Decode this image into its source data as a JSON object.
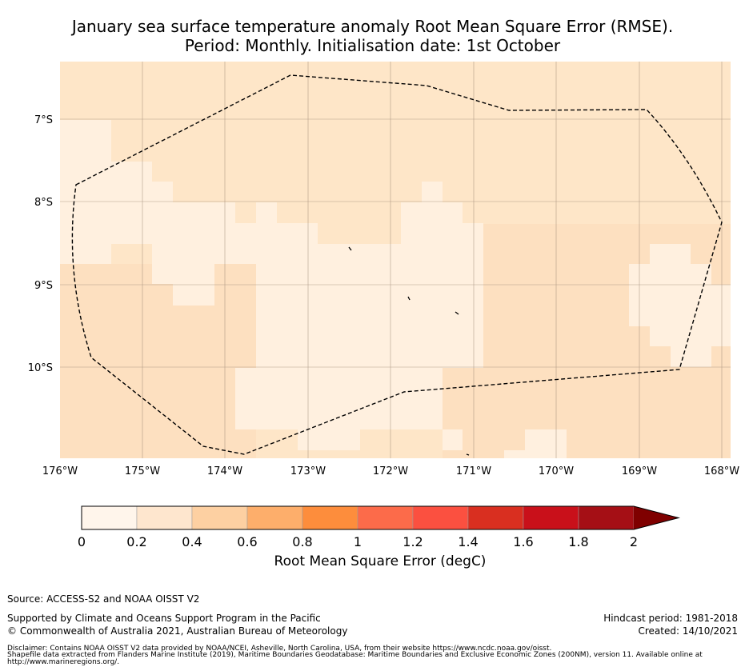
{
  "title": {
    "line1": "January sea surface temperature anomaly Root Mean Square Error (RMSE).",
    "line2": "Period: Monthly. Initialisation date: 1st October"
  },
  "map": {
    "lat_labels": [
      "7°S",
      "8°S",
      "9°S",
      "10°S"
    ],
    "lon_labels": [
      "176°W",
      "175°W",
      "174°W",
      "173°W",
      "172°W",
      "171°W",
      "170°W",
      "169°W",
      "168°W"
    ],
    "colors": {
      "very_light": "#fff0df",
      "light": "#fee6c8",
      "ocean_mid": "#fde0c0"
    },
    "boundary_style": "dashed"
  },
  "colorbar": {
    "colors": [
      "#fff5eb",
      "#fee6ce",
      "#fdd0a2",
      "#fdae6b",
      "#fd8d3c",
      "#fc6b4a",
      "#fb5040",
      "#d92f20",
      "#c9101a",
      "#a50f15",
      "#7f0000"
    ],
    "tick_labels": [
      "0",
      "0.2",
      "0.4",
      "0.6",
      "0.8",
      "1",
      "1.2",
      "1.4",
      "1.6",
      "1.8",
      "2"
    ],
    "label": "Root Mean Square Error (degC)"
  },
  "footer": {
    "source": "Source: ACCESS-S2 and NOAA OISST V2",
    "supported": "Supported by Climate and Oceans Support Program in the Pacific",
    "copyright": "© Commonwealth of Australia 2021, Australian Bureau of Meteorology",
    "hindcast": "Hindcast period: 1981-2018",
    "created": "Created: 14/10/2021",
    "disclaimer1": "Disclaimer: Contains NOAA OISST V2 data provided by NOAA/NCEI, Asheville, North Carolina, USA, from their website https://www.ncdc.noaa.gov/oisst.",
    "disclaimer2": "Shapefile data extracted from Flanders Marine Institute (2019), Maritime Boundaries Geodatabase: Maritime Boundaries and Exclusive Economic Zones (200NM), version 11. Available online at",
    "disclaimer3": "http://www.marineregions.org/."
  }
}
